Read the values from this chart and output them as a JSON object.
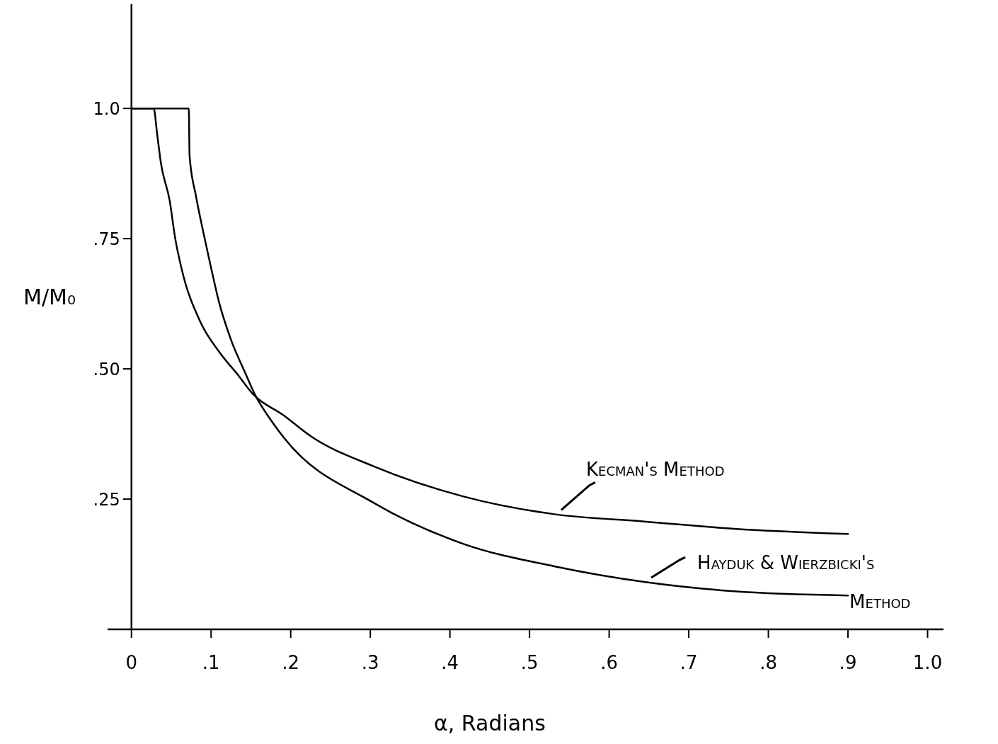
{
  "chart_data": {
    "type": "line",
    "xlabel": "α, Radians",
    "ylabel": "M/M₀",
    "xlim": [
      -0.03,
      1.02
    ],
    "ylim": [
      0,
      1.2
    ],
    "xticks": [
      0,
      {
        "value": 0.1,
        "label": ".1"
      },
      {
        "value": 0.2,
        "label": ".2"
      },
      {
        "value": 0.3,
        "label": ".3"
      },
      {
        "value": 0.4,
        "label": ".4"
      },
      {
        "value": 0.5,
        "label": ".5"
      },
      {
        "value": 0.6,
        "label": ".6"
      },
      {
        "value": 0.7,
        "label": ".7"
      },
      {
        "value": 0.8,
        "label": ".8"
      },
      {
        "value": 0.9,
        "label": ".9"
      },
      {
        "value": 1.0,
        "label": "1.0"
      }
    ],
    "yticks": [
      {
        "value": 0.25,
        "label": ".25"
      },
      {
        "value": 0.5,
        "label": ".50"
      },
      {
        "value": 0.75,
        "label": ".75"
      },
      {
        "value": 1.0,
        "label": "1.0"
      }
    ],
    "grid": false,
    "legend": "right",
    "marker": "none",
    "line_style": "solid",
    "series": [
      {
        "name": "Kecman's Method",
        "color": "#000000",
        "x": [
          0,
          0.028,
          0.032,
          0.037,
          0.048,
          0.055,
          0.063,
          0.086,
          0.11,
          0.134,
          0.153,
          0.19,
          0.226,
          0.304,
          0.417,
          0.531,
          0.644,
          0.757,
          0.9
        ],
        "values": [
          1.0,
          1.0,
          0.954,
          0.895,
          0.823,
          0.75,
          0.692,
          0.592,
          0.533,
          0.488,
          0.451,
          0.412,
          0.37,
          0.313,
          0.255,
          0.221,
          0.207,
          0.193,
          0.183
        ]
      },
      {
        "name": "Hayduk & Wierzbicki's Method",
        "color": "#000000",
        "x": [
          0,
          0.072,
          0.073,
          0.081,
          0.09,
          0.099,
          0.11,
          0.125,
          0.143,
          0.155,
          0.175,
          0.192,
          0.304,
          0.417,
          0.531,
          0.644,
          0.757,
          0.9
        ],
        "values": [
          1.0,
          1.0,
          0.909,
          0.832,
          0.764,
          0.701,
          0.628,
          0.556,
          0.492,
          0.451,
          0.402,
          0.367,
          0.243,
          0.164,
          0.121,
          0.091,
          0.073,
          0.065
        ]
      }
    ]
  }
}
